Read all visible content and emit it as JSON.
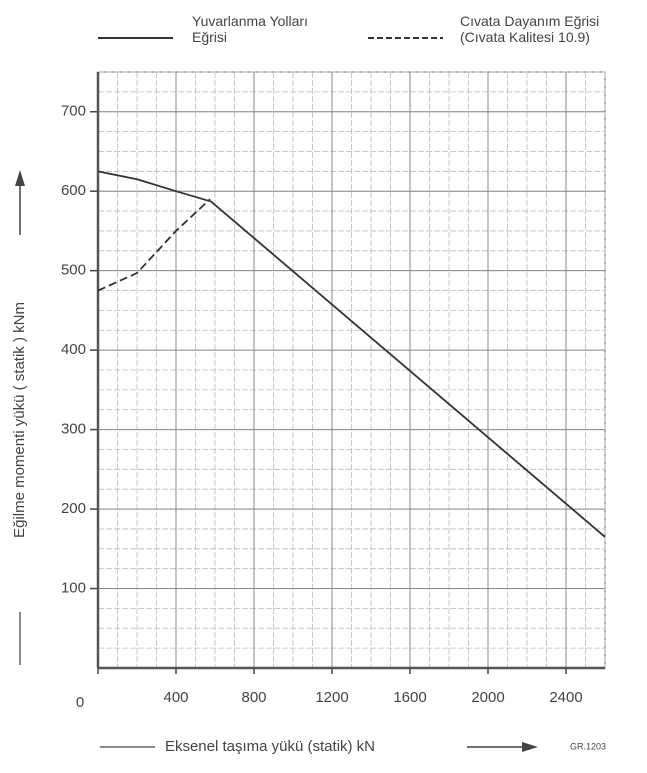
{
  "chart_data": {
    "type": "line",
    "x_label": "Eksenel taşıma yükü (statik) kN",
    "y_label": "Eğilme momenti yükü ( statik ) kNm",
    "note": "GR.1203",
    "series": [
      {
        "name": "Yuvarlanma Yolları Eğrisi",
        "color": "#333333",
        "linestyle": "solid",
        "x": [
          0,
          200,
          400,
          580,
          2600
        ],
        "values": [
          625,
          615,
          600,
          587,
          165
        ]
      },
      {
        "name": "Cıvata Dayanım Eğrisi (Cıvata Kalitesi 10.9)",
        "color": "#333333",
        "linestyle": "dashed",
        "x": [
          0,
          200,
          400,
          575
        ],
        "values": [
          475,
          497,
          550,
          590
        ]
      }
    ],
    "xlim": [
      0,
      2600
    ],
    "ylim": [
      0,
      750
    ],
    "xticks": [
      0,
      400,
      800,
      1200,
      1600,
      2000,
      2400
    ],
    "yticks": [
      100,
      200,
      300,
      400,
      500,
      600,
      700
    ],
    "grid": true
  }
}
